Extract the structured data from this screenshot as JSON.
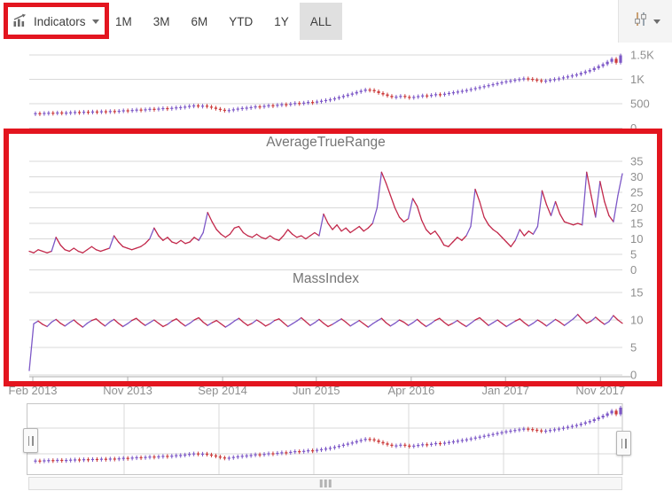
{
  "toolbar": {
    "indicators": {
      "label": "Indicators"
    },
    "periods": [
      {
        "label": "1M",
        "selected": false
      },
      {
        "label": "3M",
        "selected": false
      },
      {
        "label": "6M",
        "selected": false
      },
      {
        "label": "YTD",
        "selected": false
      },
      {
        "label": "1Y",
        "selected": false
      },
      {
        "label": "ALL",
        "selected": true
      }
    ]
  },
  "colors": {
    "bull": "#7d58c7",
    "bear": "#cc3b3b",
    "line_red": "#c2294b",
    "line_purple": "#7d58c7",
    "grid": "#d9d9d9",
    "axis": "#ababab",
    "label": "#8f8f8f",
    "title": "#757575",
    "annotation": "#e3151f"
  },
  "chart_data": [
    {
      "type": "candlestick",
      "name": "price",
      "title": "",
      "ylim": [
        0,
        1650
      ],
      "y_ticks": {
        "values": [
          0,
          500,
          1000,
          1500
        ],
        "labels": [
          "0",
          "500",
          "1K",
          "1.5K"
        ]
      },
      "x_labels": [
        "Feb 2013",
        "Nov 2013",
        "Sep 2014",
        "Jun 2015",
        "Apr 2016",
        "Jan 2017",
        "Nov 2017"
      ],
      "values": [
        300,
        305,
        298,
        310,
        315,
        308,
        320,
        312,
        318,
        325,
        330,
        322,
        335,
        328,
        340,
        332,
        345,
        338,
        350,
        342,
        355,
        365,
        358,
        372,
        380,
        370,
        385,
        395,
        388,
        400,
        410,
        402,
        415,
        425,
        430,
        440,
        455,
        465,
        450,
        460,
        440,
        420,
        395,
        375,
        362,
        370,
        385,
        400,
        412,
        420,
        430,
        445,
        438,
        455,
        468,
        460,
        478,
        490,
        482,
        500,
        515,
        508,
        522,
        535,
        528,
        545,
        560,
        575,
        590,
        610,
        635,
        660,
        685,
        710,
        740,
        765,
        790,
        780,
        755,
        720,
        690,
        660,
        635,
        645,
        660,
        640,
        625,
        640,
        655,
        670,
        662,
        680,
        695,
        688,
        705,
        720,
        735,
        750,
        765,
        780,
        800,
        820,
        840,
        860,
        880,
        900,
        920,
        940,
        960,
        975,
        990,
        1005,
        1020,
        1010,
        995,
        980,
        965,
        975,
        990,
        1005,
        1020,
        1040,
        1060,
        1080,
        1100,
        1130,
        1160,
        1190,
        1230,
        1270,
        1310,
        1360,
        1420,
        1340,
        1490
      ]
    },
    {
      "type": "line",
      "name": "average-true-range",
      "title": "AverageTrueRange",
      "ylim": [
        0,
        35
      ],
      "y_ticks": {
        "values": [
          0,
          5,
          10,
          15,
          20,
          25,
          30,
          35
        ],
        "labels": [
          "0",
          "5",
          "10",
          "15",
          "20",
          "25",
          "30",
          "35"
        ]
      },
      "values": [
        6,
        5.5,
        6.5,
        6,
        5.5,
        6,
        10.5,
        8,
        6.5,
        6,
        7,
        6,
        5.5,
        6.5,
        7.5,
        6.5,
        6,
        6.5,
        7,
        11,
        9,
        7.5,
        7,
        6.5,
        7,
        7.5,
        8.5,
        10,
        13.5,
        11,
        9.5,
        10.5,
        9,
        8.5,
        9.5,
        8.5,
        9,
        10.5,
        9.5,
        12,
        18.5,
        15.5,
        13,
        11.5,
        10.5,
        11.5,
        13.5,
        14,
        12,
        11,
        10.5,
        11.5,
        10.5,
        10,
        11,
        10,
        9.5,
        11,
        13,
        11.5,
        10.5,
        11,
        10,
        11,
        12,
        11,
        18,
        15,
        13,
        14.5,
        12.5,
        13.5,
        12,
        13,
        14,
        12.5,
        13.5,
        15,
        20,
        31.5,
        28,
        24,
        20,
        17,
        15.5,
        16.5,
        23,
        20.5,
        16,
        13,
        11.5,
        12.5,
        10.5,
        8,
        7.5,
        9,
        10.5,
        9.5,
        11,
        14,
        26,
        22,
        17,
        14.5,
        13,
        12,
        10.5,
        9,
        7.5,
        9.5,
        13,
        11,
        12.5,
        11.5,
        14,
        25.5,
        21,
        17.5,
        22,
        18,
        15.5,
        15,
        14.5,
        15,
        14.5,
        31.5,
        24,
        17,
        28.5,
        22,
        17.5,
        15.5,
        24,
        31
      ]
    },
    {
      "type": "line",
      "name": "mass-index",
      "title": "MassIndex",
      "ylim": [
        0,
        15
      ],
      "y_ticks": {
        "values": [
          0,
          5,
          10,
          15
        ],
        "labels": [
          "0",
          "5",
          "10",
          "15"
        ]
      },
      "values": [
        0.8,
        9.3,
        9.8,
        9.2,
        8.8,
        9.6,
        10.1,
        9.4,
        8.9,
        9.5,
        10.0,
        9.3,
        8.7,
        9.4,
        9.9,
        10.2,
        9.5,
        8.9,
        9.6,
        10.1,
        9.4,
        8.8,
        9.3,
        9.9,
        10.3,
        9.6,
        9.0,
        9.5,
        10.0,
        9.4,
        8.8,
        9.2,
        9.8,
        10.2,
        9.5,
        8.9,
        9.4,
        10.0,
        10.4,
        9.6,
        9.0,
        9.5,
        9.9,
        9.3,
        8.7,
        9.2,
        9.8,
        10.3,
        9.6,
        9.0,
        9.4,
        10.0,
        9.5,
        8.9,
        9.3,
        9.9,
        10.2,
        9.5,
        8.8,
        9.3,
        9.8,
        10.4,
        9.7,
        9.0,
        9.5,
        10.1,
        9.4,
        8.8,
        9.2,
        9.7,
        10.2,
        9.6,
        8.9,
        9.4,
        9.9,
        9.3,
        8.7,
        9.3,
        9.8,
        10.3,
        9.5,
        8.9,
        9.4,
        10.0,
        9.6,
        9.0,
        9.5,
        10.1,
        9.4,
        8.8,
        9.3,
        9.9,
        10.3,
        9.6,
        9.0,
        9.4,
        9.9,
        9.3,
        8.8,
        9.4,
        10.0,
        10.4,
        9.7,
        9.0,
        9.5,
        10.0,
        9.4,
        8.8,
        9.3,
        9.8,
        10.2,
        9.5,
        8.9,
        9.4,
        10.0,
        9.5,
        8.9,
        9.5,
        10.1,
        9.6,
        9.0,
        9.6,
        10.2,
        11.0,
        10.1,
        9.4,
        9.8,
        10.5,
        9.8,
        9.2,
        9.7,
        10.8,
        10.0,
        9.4
      ]
    },
    {
      "type": "candlestick",
      "name": "range-selector-preview",
      "source": "price"
    }
  ]
}
